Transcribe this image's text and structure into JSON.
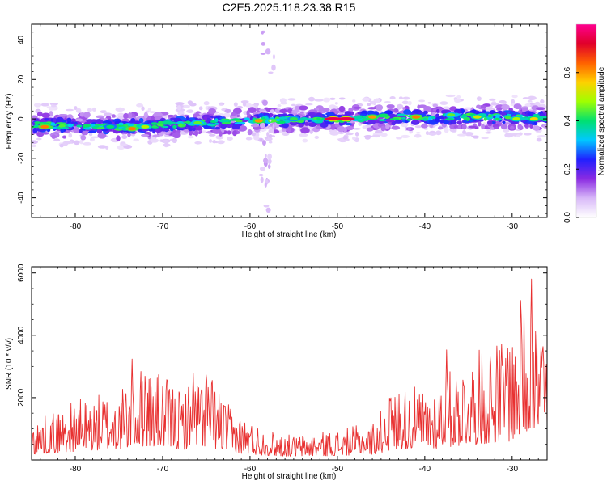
{
  "title": "C2E5.2025.118.23.38.R15",
  "chart_data": [
    {
      "type": "heatmap",
      "xlabel": "Height of straight line (km)",
      "ylabel": "Frequency (Hz)",
      "xlim": [
        -85,
        -26
      ],
      "ylim": [
        -50,
        48
      ],
      "xticks": [
        -80,
        -70,
        -60,
        -50,
        -40,
        -30
      ],
      "yticks": [
        -40,
        -20,
        0,
        20,
        40
      ],
      "colorbar": {
        "label": "Normalized spectral amplitude",
        "range": [
          0,
          0.8
        ],
        "ticks": [
          0.0,
          0.2,
          0.4,
          0.6
        ],
        "colormap": [
          "#ffffff",
          "#d8b8f8",
          "#8a2be2",
          "#2020ff",
          "#00c8ff",
          "#00e070",
          "#a0ff00",
          "#ffd000",
          "#ff6000",
          "#e0002a",
          "#ff0090"
        ]
      },
      "band_centerline": [
        [
          -85,
          -3
        ],
        [
          -75,
          -4
        ],
        [
          -70,
          -3
        ],
        [
          -60,
          -1
        ],
        [
          -50,
          0
        ],
        [
          -40,
          1
        ],
        [
          -30,
          1
        ],
        [
          -26,
          0
        ]
      ],
      "hotspots": [
        {
          "x": -83.5,
          "y": -4,
          "v": 0.62
        },
        {
          "x": -76,
          "y": -4,
          "v": 0.4
        },
        {
          "x": -73.5,
          "y": -5,
          "v": 0.62
        },
        {
          "x": -72,
          "y": -4,
          "v": 0.5
        },
        {
          "x": -66,
          "y": -2,
          "v": 0.45
        },
        {
          "x": -59,
          "y": -1,
          "v": 0.6
        },
        {
          "x": -55,
          "y": 0,
          "v": 0.42
        },
        {
          "x": -50.5,
          "y": 0,
          "v": 0.75
        },
        {
          "x": -49,
          "y": 0,
          "v": 0.75
        },
        {
          "x": -46,
          "y": 1,
          "v": 0.6
        },
        {
          "x": -41,
          "y": 1,
          "v": 0.62
        },
        {
          "x": -37,
          "y": 2,
          "v": 0.45
        },
        {
          "x": -34,
          "y": 1,
          "v": 0.52
        },
        {
          "x": -29.5,
          "y": 0,
          "v": 0.5
        },
        {
          "x": -27.5,
          "y": 0,
          "v": 0.55
        }
      ],
      "vertical_streak": {
        "x": -58,
        "y_range": [
          -48,
          45
        ]
      }
    },
    {
      "type": "line",
      "xlabel": "Height of straight line (km)",
      "ylabel": "SNR (10 * v/v)",
      "xlim": [
        -85,
        -26
      ],
      "ylim": [
        0,
        6200
      ],
      "xticks": [
        -80,
        -70,
        -60,
        -50,
        -40,
        -30
      ],
      "yticks": [
        2000,
        4000,
        6000
      ],
      "color": "#e83030",
      "envelope": [
        [
          -85,
          700
        ],
        [
          -80,
          1100
        ],
        [
          -75,
          1300
        ],
        [
          -72,
          1800
        ],
        [
          -68,
          1300
        ],
        [
          -65,
          1700
        ],
        [
          -62,
          900
        ],
        [
          -58,
          550
        ],
        [
          -55,
          450
        ],
        [
          -50,
          550
        ],
        [
          -46,
          700
        ],
        [
          -43,
          1400
        ],
        [
          -40,
          1300
        ],
        [
          -36,
          1800
        ],
        [
          -33,
          2100
        ],
        [
          -30,
          2400
        ],
        [
          -28,
          3500
        ],
        [
          -27,
          2800
        ],
        [
          -26,
          2300
        ]
      ],
      "peaks": [
        [
          -84.8,
          1000
        ],
        [
          -73.5,
          3300
        ],
        [
          -72,
          2900
        ],
        [
          -66.5,
          2800
        ],
        [
          -65,
          3000
        ],
        [
          -44,
          2300
        ],
        [
          -37.5,
          3600
        ],
        [
          -32.5,
          3800
        ],
        [
          -30.5,
          3700
        ],
        [
          -29,
          5600
        ],
        [
          -27.8,
          6100
        ],
        [
          -26.5,
          4200
        ]
      ]
    }
  ]
}
